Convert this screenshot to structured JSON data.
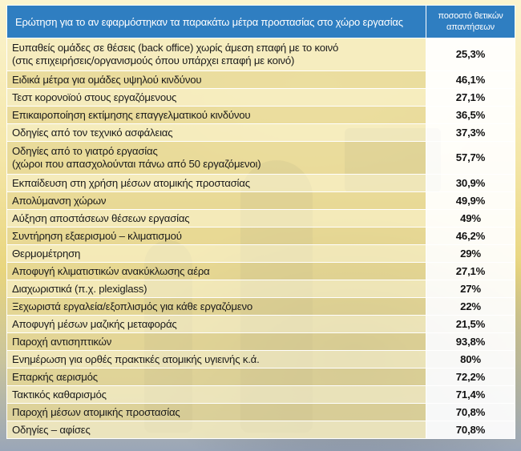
{
  "header": {
    "question": "Ερώτηση για το αν εφαρμόστηκαν τα παρακάτω μέτρα προστασίας στο χώρο εργασίας",
    "percent_line1": "ποσοστό θετικών",
    "percent_line2": "απαντήσεων"
  },
  "rows": [
    {
      "measure": "Ευπαθείς ομάδες σε θέσεις (back office) χωρίς άμεση επαφή με το κοινό",
      "measure2": "(στις επιχειρήσεις/οργανισμούς όπου υπάρχει επαφή με κοινό)",
      "percent": "25,3%"
    },
    {
      "measure": "Ειδικά μέτρα για ομάδες υψηλού κινδύνου",
      "percent": "46,1%"
    },
    {
      "measure": "Τεστ κορονοϊού στους εργαζόμενους",
      "percent": "27,1%"
    },
    {
      "measure": "Επικαιροποίηση εκτίμησης επαγγελματικού κινδύνου",
      "percent": "36,5%"
    },
    {
      "measure": "Οδηγίες από τον τεχνικό ασφάλειας",
      "percent": "37,3%"
    },
    {
      "measure": "Οδηγίες από το γιατρό εργασίας",
      "measure2": "(χώροι που απασχολούνται πάνω από 50 εργαζόμενοι)",
      "percent": "57,7%"
    },
    {
      "measure": "Εκπαίδευση στη χρήση μέσων ατομικής προστασίας",
      "percent": "30,9%"
    },
    {
      "measure": "Απολύμανση χώρων",
      "percent": "49,9%"
    },
    {
      "measure": "Αύξηση αποστάσεων θέσεων εργασίας",
      "percent": "49%"
    },
    {
      "measure": "Συντήρηση εξαερισμού – κλιματισμού",
      "percent": "46,2%"
    },
    {
      "measure": "Θερμομέτρηση",
      "percent": "29%"
    },
    {
      "measure": "Αποφυγή κλιματιστικών ανακύκλωσης αέρα",
      "percent": "27,1%"
    },
    {
      "measure": "Διαχωριστικά (π.χ. plexiglass)",
      "percent": "27%"
    },
    {
      "measure": "Ξεχωριστά εργαλεία/εξοπλισμός για κάθε εργαζόμενο",
      "percent": "22%"
    },
    {
      "measure": "Αποφυγή μέσων μαζικής μεταφοράς",
      "percent": "21,5%"
    },
    {
      "measure": "Παροχή αντισηπτικών",
      "percent": "93,8%"
    },
    {
      "measure": "Ενημέρωση για ορθές πρακτικές ατομικής υγιεινής κ.ά.",
      "percent": "80%"
    },
    {
      "measure": "Επαρκής αερισμός",
      "percent": "72,2%"
    },
    {
      "measure": "Τακτικός καθαρισμός",
      "percent": "71,4%"
    },
    {
      "measure": "Παροχή μέσων ατομικής προστασίας",
      "percent": "70,8%"
    },
    {
      "measure": "Οδηγίες – αφίσες",
      "percent": "70,8%"
    }
  ]
}
